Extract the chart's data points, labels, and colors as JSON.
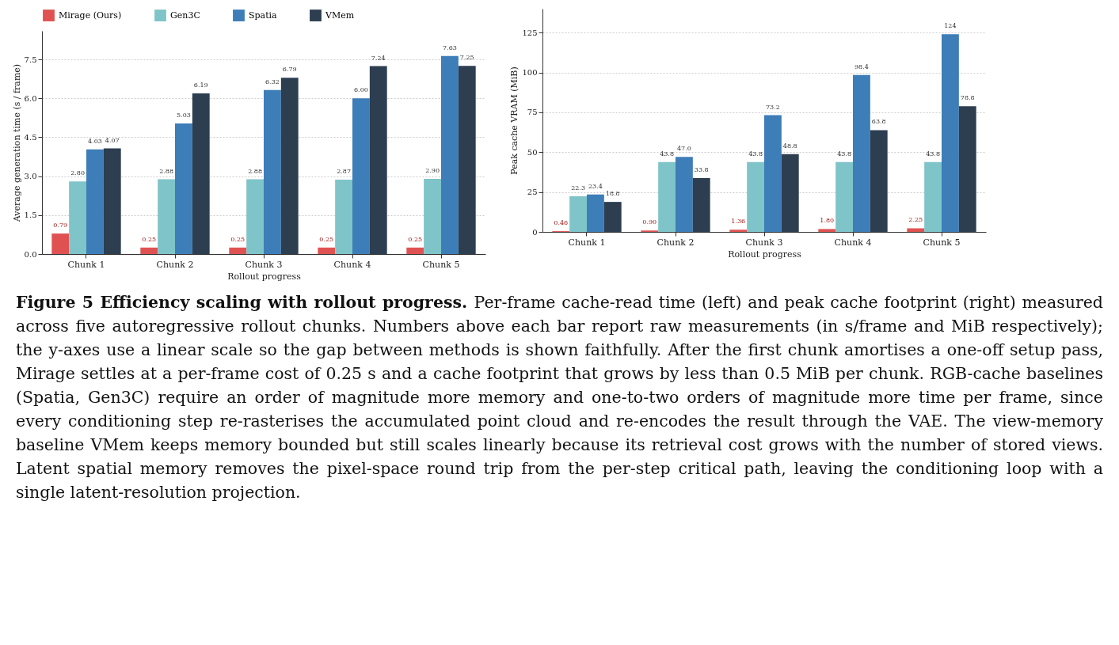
{
  "chart_data": [
    {
      "type": "bar",
      "title": "Figure 5 Efficiency scaling with rollout progress.",
      "annotations": [
        "Per-frame cache-read time (left) and peak cache footprint (right) measured across five autoregressive rollout chunks. Numbers above each bar report raw measurements (in s/frame and MiB respectively); the y-axes use a linear scale so the gap between methods is shown faithfully. After the first chunk amortises a one-off setup pass, Mirage settles at a per-frame cost of 0.25 s and a cache footprint that grows by less than 0.5 MiB per chunk. RGB-cache baselines (Spatia, Gen3C) require an order of magnitude more memory and one-to-two orders of magnitude more time per frame, since every conditioning step re-rasterises the accumulated point cloud and re-encodes the result through the VAE. The view-memory baseline VMem keeps memory bounded but still scales linearly because its retrieval cost grows with the number of stored views. Latent spatial memory removes the pixel-space round trip from the per-step critical path, leaving the conditioning loop with a single latent-resolution projection."
      ],
      "xlabel": "Rollout progress",
      "ylabel": "Average generation time  (s / frame)",
      "categories": [
        "Chunk 1",
        "Chunk 2",
        "Chunk 3",
        "Chunk 4",
        "Chunk 5"
      ],
      "series": [
        {
          "name": "Mirage (Ours)",
          "color": "#e05252",
          "values": [
            0.79,
            0.25,
            0.25,
            0.25,
            0.25
          ],
          "value_labels": [
            "0.79",
            "0.25",
            "0.25",
            "0.25",
            "0.25"
          ]
        },
        {
          "name": "Gen3C",
          "color": "#7fc4c8",
          "values": [
            2.8,
            2.88,
            2.88,
            2.87,
            2.9
          ],
          "value_labels": [
            "2.80",
            "2.88",
            "2.88",
            "2.87",
            "2.90"
          ]
        },
        {
          "name": "Spatia",
          "color": "#3d7db8",
          "values": [
            4.03,
            5.03,
            6.32,
            6.0,
            7.63
          ],
          "value_labels": [
            "4.03",
            "5.03",
            "6.32",
            "6.00",
            "7.63"
          ]
        },
        {
          "name": "VMem",
          "color": "#2c3e50",
          "values": [
            4.07,
            6.19,
            6.79,
            7.24,
            7.25
          ],
          "value_labels": [
            "4.07",
            "6.19",
            "6.79",
            "7.24",
            "7.25"
          ]
        }
      ],
      "ylim": [
        0,
        8.6
      ],
      "yticks": [
        {
          "value": 0,
          "label": "0.0"
        },
        1.5,
        {
          "value": 3,
          "label": "3.0"
        },
        4.5,
        {
          "value": 6,
          "label": "6.0"
        },
        7.5
      ],
      "grid": "y",
      "legend": "top"
    },
    {
      "type": "bar",
      "xlabel": "Rollout progress",
      "ylabel": "Peak cache VRAM  (MiB)",
      "categories": [
        "Chunk 1",
        "Chunk 2",
        "Chunk 3",
        "Chunk 4",
        "Chunk 5"
      ],
      "series": [
        {
          "color": "#e05252",
          "values": [
            0.46,
            0.9,
            1.36,
            1.8,
            2.25
          ],
          "value_labels": [
            "0.46",
            "0.90",
            "1.36",
            "1.80",
            "2.25"
          ]
        },
        {
          "color": "#7fc4c8",
          "values": [
            22.3,
            43.8,
            43.8,
            43.8,
            43.8
          ],
          "value_labels": [
            "22.3",
            "43.8",
            "43.8",
            "43.8",
            "43.8"
          ]
        },
        {
          "color": "#3d7db8",
          "values": [
            23.4,
            47.0,
            73.2,
            98.4,
            124
          ],
          "value_labels": [
            "23.4",
            "47.0",
            "73.2",
            "98.4",
            "124"
          ]
        },
        {
          "color": "#2c3e50",
          "values": [
            18.8,
            33.8,
            48.8,
            63.8,
            78.8
          ],
          "value_labels": [
            "18.8",
            "33.8",
            "48.8",
            "63.8",
            "78.8"
          ]
        }
      ],
      "ylim": [
        0,
        140
      ],
      "yticks": [
        0,
        25,
        50,
        75,
        100,
        125
      ],
      "grid": "y"
    }
  ]
}
